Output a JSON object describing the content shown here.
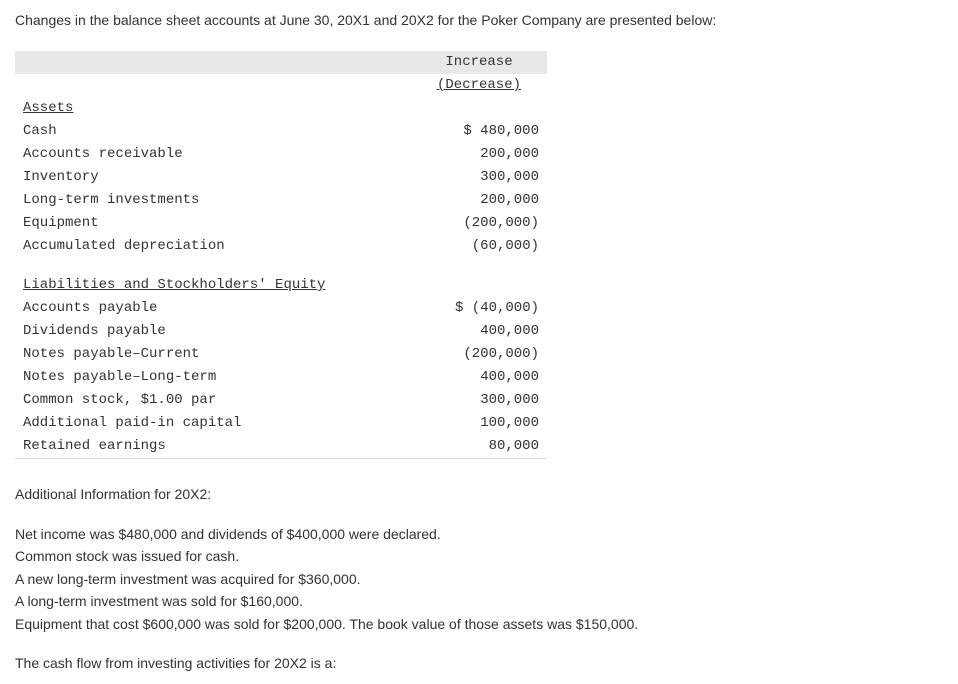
{
  "intro": "Changes in the balance sheet accounts at June 30, 20X1 and 20X2 for the Poker Company are presented below:",
  "table": {
    "header_line1": "Increase",
    "header_line2": "(Decrease)",
    "assets_title": "Assets",
    "assets": {
      "cash_label": "Cash",
      "cash_value": "$ 480,000",
      "ar_label": "Accounts receivable",
      "ar_value": "200,000",
      "inv_label": "Inventory",
      "inv_value": "300,000",
      "lti_label": "Long-term investments",
      "lti_value": "200,000",
      "equip_label": "Equipment",
      "equip_value": "(200,000)",
      "accdep_label": "Accumulated depreciation",
      "accdep_value": "(60,000)"
    },
    "liab_title": "Liabilities and Stockholders' Equity",
    "liab": {
      "ap_label": "Accounts payable",
      "ap_value": "$ (40,000)",
      "div_label": "Dividends payable",
      "div_value": "400,000",
      "npc_label": "Notes payable–Current",
      "npc_value": "(200,000)",
      "nplt_label": "Notes payable–Long-term",
      "nplt_value": "400,000",
      "cs_label": "Common stock, $1.00 par",
      "cs_value": "300,000",
      "apic_label": "Additional paid-in capital",
      "apic_value": "100,000",
      "re_label": "Retained earnings",
      "re_value": "80,000"
    }
  },
  "additional_title": "Additional Information for 20X2:",
  "info": {
    "line1": "Net income was $480,000 and dividends of $400,000 were declared.",
    "line2": "Common stock was issued for cash.",
    "line3": "A new long-term investment was acquired for $360,000.",
    "line4": "A long-term investment was sold for $160,000.",
    "line5": "Equipment that cost $600,000 was sold for $200,000. The book value of those assets was $150,000."
  },
  "question": "The cash flow from investing activities for 20X2 is a:"
}
